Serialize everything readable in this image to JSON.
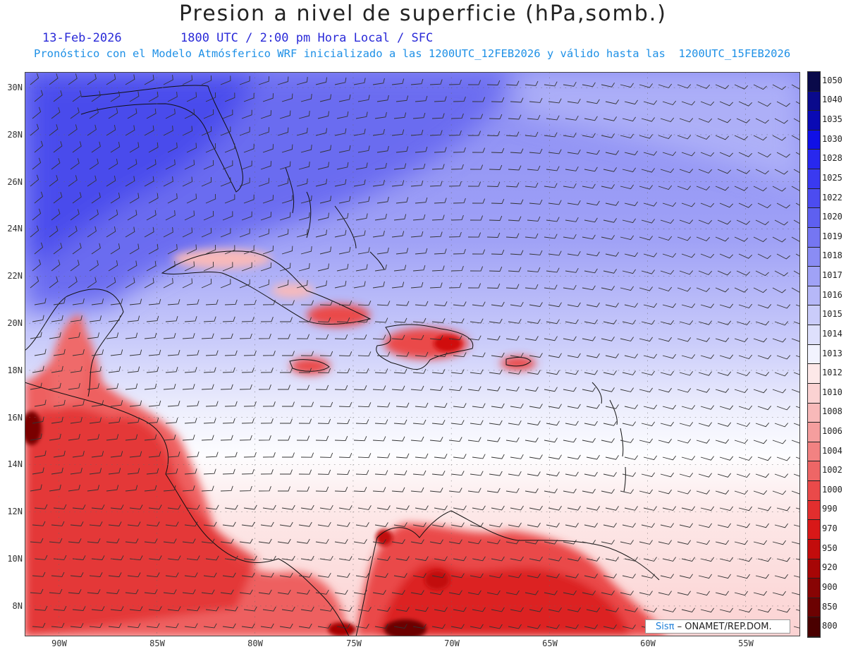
{
  "header": {
    "title": "Presion a nivel de superficie (hPa,somb.)",
    "date": "13-Feb-2026",
    "time_info": "1800 UTC / 2:00 pm Hora Local / SFC",
    "forecast_info": "Pronóstico con el Modelo Atmósferico WRF inicializado a las 1200UTC_12FEB2026 y válido hasta las  1200UTC_15FEB2026"
  },
  "map": {
    "projection": "lat-lon",
    "lon_range": [
      -92,
      -52.5
    ],
    "lat_range": [
      6.8,
      30.6
    ],
    "lat_ticks": [
      "30N",
      "28N",
      "26N",
      "24N",
      "22N",
      "20N",
      "18N",
      "16N",
      "14N",
      "12N",
      "10N",
      "8N"
    ],
    "lon_ticks": [
      "90W",
      "85W",
      "80W",
      "75W",
      "70W",
      "65W",
      "60W",
      "55W"
    ],
    "gridlines": true,
    "wind_barbs": true
  },
  "colorbar": {
    "labels": [
      "1050",
      "1040",
      "1035",
      "1030",
      "1028",
      "1025",
      "1022",
      "1020",
      "1019",
      "1018",
      "1017",
      "1016",
      "1015",
      "1014",
      "1013",
      "1012",
      "1010",
      "1008",
      "1006",
      "1004",
      "1002",
      "1000",
      "990",
      "970",
      "950",
      "920",
      "900",
      "850",
      "800"
    ],
    "colors": [
      "#0a0a4a",
      "#0a0a8c",
      "#0a0ab4",
      "#1010e6",
      "#2828ee",
      "#3a3af0",
      "#4c4cf0",
      "#5e60f0",
      "#7576f2",
      "#8a8cf4",
      "#a0a2f6",
      "#b6b8f8",
      "#caccfa",
      "#dee0fc",
      "#f2f3fe",
      "#fde8e8",
      "#fbd2d2",
      "#f8b9b9",
      "#f59e9e",
      "#f28282",
      "#ee6666",
      "#ea4a4a",
      "#e22e2e",
      "#d81818",
      "#c20c0c",
      "#a60606",
      "#880404",
      "#6c0202",
      "#4a0000"
    ]
  },
  "credit": {
    "logo": "Sisπ",
    "text": "– ONAMET/REP.DOM."
  }
}
